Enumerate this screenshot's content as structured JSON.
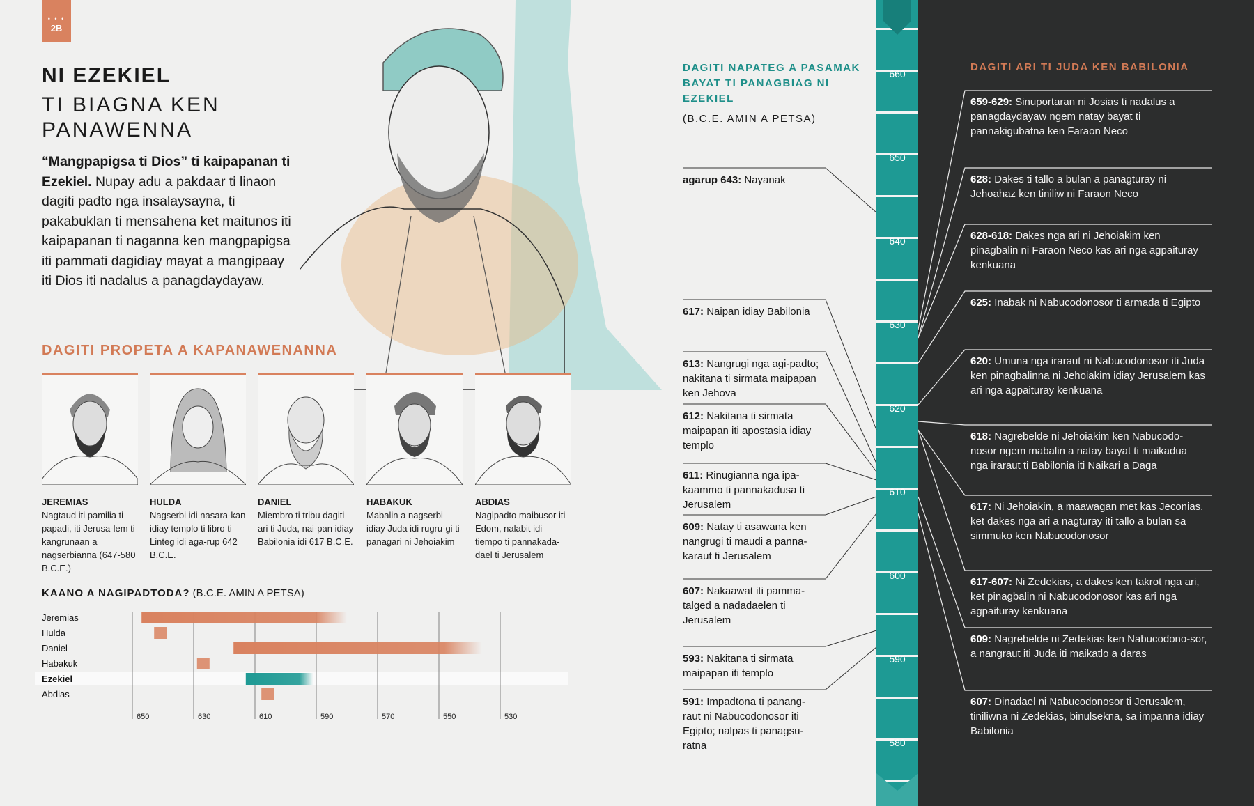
{
  "badge": {
    "dots": "• • •",
    "page": "2B"
  },
  "title": {
    "line1": "NI EZEKIEL",
    "line2": "TI BIAGNA KEN",
    "line3": "PANAWENNA"
  },
  "intro": {
    "bold": "“Mangpapigsa ti Dios” ti kaipapanan ti Ezekiel.",
    "text": " Nupay adu a pakdaar ti linaon dagiti padto nga insalaysayna, ti pakabuklan ti mensahena ket maitunos iti kaipapanan ti naganna ken mangpapigsa iti pammati dagidiay mayat a mangipaay iti Dios iti nadalus a panagdaydayaw."
  },
  "prophets": {
    "heading": "DAGITI PROPETA A KAPANAWENANNA",
    "cards": [
      {
        "name": "JEREMIAS",
        "desc": "Nagtaud iti pamilia ti papadi, iti Jerusa-lem ti kangrunaan a nagserbianna (647-580 B.C.E.)"
      },
      {
        "name": "HULDA",
        "desc": "Nagserbi idi nasara-kan idiay templo ti libro ti Linteg idi aga-rup 642 B.C.E."
      },
      {
        "name": "DANIEL",
        "desc": "Miembro ti tribu dagiti ari ti Juda, nai-pan idiay Babilonia idi 617 B.C.E."
      },
      {
        "name": "HABAKUK",
        "desc": "Mabalin a nagserbi idiay Juda idi rugru-gi ti panagari ni Jehoiakim"
      },
      {
        "name": "ABDIAS",
        "desc": "Nagipadto maibusor iti Edom, nalabit idi tiempo ti pannakada-dael ti Jerusalem"
      }
    ]
  },
  "timeline": {
    "heading_bold": "KAANO A NAGIPADTODA?",
    "heading_note": " (B.C.E. AMIN A PETSA)",
    "ticks": [
      "650",
      "630",
      "610",
      "590",
      "570",
      "550",
      "530"
    ],
    "rows": [
      {
        "name": "Jeremias",
        "start": 647,
        "end": 580,
        "highlight": false,
        "color": "#d9825f"
      },
      {
        "name": "Hulda",
        "start": 642,
        "end": 642,
        "highlight": false,
        "color": "#d9825f"
      },
      {
        "name": "Daniel",
        "start": 617,
        "end": 536,
        "highlight": false,
        "color": "#d9825f"
      },
      {
        "name": "Habakuk",
        "start": 628,
        "end": 628,
        "highlight": false,
        "color": "#d9825f"
      },
      {
        "name": "Ezekiel",
        "start": 613,
        "end": 591,
        "highlight": true,
        "color": "#1e9a94"
      },
      {
        "name": "Abdias",
        "start": 607,
        "end": 607,
        "highlight": false,
        "color": "#d9825f"
      }
    ]
  },
  "middle": {
    "heading": "DAGITI NAPATEG A PASAMAK BAYAT TI PANAGBIAG NI EZEKIEL",
    "sub": "(B.C.E. AMIN A PETSA)",
    "events": [
      {
        "year": 643,
        "label": "agarup 643:",
        "text": " Nayanak"
      },
      {
        "year": 617,
        "label": "617:",
        "text": " Naipan idiay Babilonia"
      },
      {
        "year": 613,
        "label": "613:",
        "text": " Nangrugi nga agi-padto; nakitana ti sirmata maipapan ken Jehova"
      },
      {
        "year": 612,
        "label": "612:",
        "text": " Nakitana ti sirmata maipapan iti apostasia idiay templo"
      },
      {
        "year": 611,
        "label": "611:",
        "text": " Rinugianna nga ipa-kaammo ti pannakadusa ti Jerusalem"
      },
      {
        "year": 609,
        "label": "609:",
        "text": " Natay ti asawana ken nangrugi ti maudi a panna-karaut ti Jerusalem"
      },
      {
        "year": 607,
        "label": "607:",
        "text": " Nakaawat iti pamma-talged a nadadaelen ti Jerusalem"
      },
      {
        "year": 593,
        "label": "593:",
        "text": " Nakitana ti sirmata maipapan iti templo"
      },
      {
        "year": 591,
        "label": "591:",
        "text": " Impadtona ti panang-raut ni Nabucodonosor iti Egipto; nalpas ti panagsu-ratna"
      }
    ]
  },
  "scale": {
    "labels": [
      "660",
      "650",
      "640",
      "630",
      "620",
      "610",
      "600",
      "590",
      "580"
    ]
  },
  "right": {
    "heading": "DAGITI ARI TI JUDA KEN BABILONIA",
    "events": [
      {
        "year": 629,
        "label": "659-629:",
        "text": " Sinuportaran ni Josias ti nadalus a panagdaydayaw ngem natay bayat ti pannakigubatna ken Faraon Neco"
      },
      {
        "year": 628,
        "label": "628:",
        "text": " Dakes ti tallo a bulan a panagturay ni Jehoahaz ken tiniliw ni Faraon Neco"
      },
      {
        "year": 628,
        "label": "628-618:",
        "text": " Dakes nga ari ni Jehoiakim ken pinagbalin ni Faraon Neco kas ari nga agpaituray kenkuana"
      },
      {
        "year": 625,
        "label": "625:",
        "text": " Inabak ni Nabucodonosor ti armada ti Egipto"
      },
      {
        "year": 620,
        "label": "620:",
        "text": " Umuna nga iraraut ni Nabucodonosor iti Juda ken pinagbalinna ni Jehoiakim idiay Jerusalem kas ari nga agpaituray kenkuana"
      },
      {
        "year": 618,
        "label": "618:",
        "text": " Nagrebelde ni Jehoiakim ken Nabucodo-nosor ngem mabalin a natay bayat ti maikadua nga iraraut ti Babilonia iti Naikari a Daga"
      },
      {
        "year": 617,
        "label": "617:",
        "text": " Ni Jehoiakin, a maawagan met kas Jeconias, ket dakes nga ari a nagturay iti tallo a bulan sa simmuko ken Nabucodonosor"
      },
      {
        "year": 617,
        "label": "617-607:",
        "text": " Ni Zedekias, a dakes ken takrot nga ari, ket pinagbalin ni Nabucodonosor kas ari nga agpaituray kenkuana"
      },
      {
        "year": 609,
        "label": "609:",
        "text": " Nagrebelde ni Zedekias ken Nabucodono-sor, a nangraut iti Juda iti maikatlo a daras"
      },
      {
        "year": 607,
        "label": "607:",
        "text": " Dinadael ni Nabucodonosor ti Jerusalem, tiniliwna ni Zedekias, binulsekna, sa impanna idiay Babilonia"
      }
    ]
  }
}
